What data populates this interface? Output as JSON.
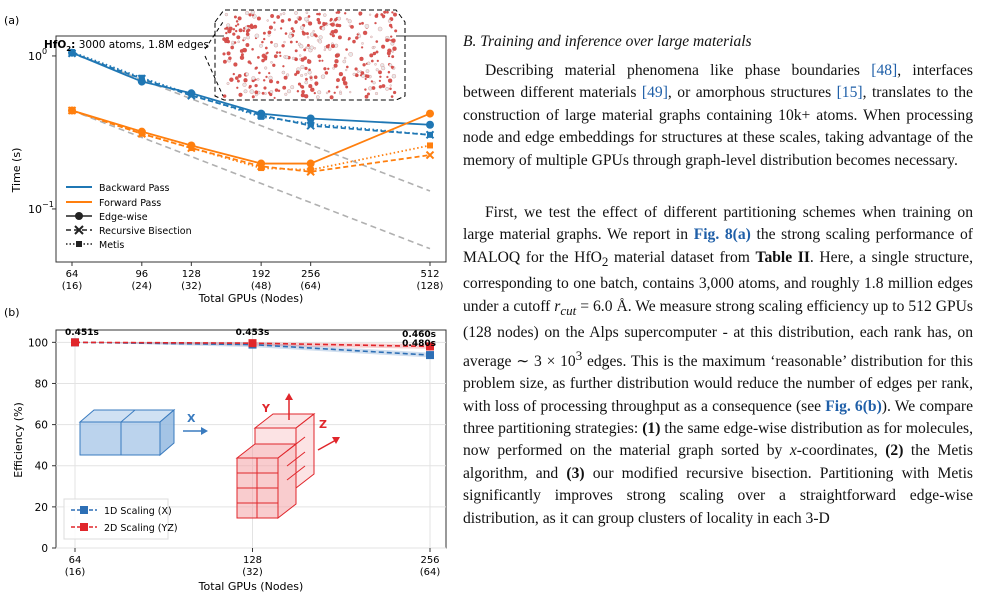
{
  "figure": {
    "panel_a_label": "(a)",
    "panel_b_label": "(b)",
    "inset_title_bold": "HfO",
    "inset_title_sub": "2",
    "inset_title_colon": ":",
    "inset_title_rest": " 3000 atoms, 1.8M edges"
  },
  "chart_data": [
    {
      "type": "line",
      "panel": "(a)",
      "xlabel": "Total GPUs (Nodes)",
      "ylabel": "Time (s)",
      "yscale": "log",
      "xscale": "log2",
      "x_ticks": [
        {
          "gpus": 64,
          "label": "64",
          "nodes": "(16)"
        },
        {
          "gpus": 96,
          "label": "96",
          "nodes": "(24)"
        },
        {
          "gpus": 128,
          "label": "128",
          "nodes": "(32)"
        },
        {
          "gpus": 192,
          "label": "192",
          "nodes": "(48)"
        },
        {
          "gpus": 256,
          "label": "256",
          "nodes": "(64)"
        },
        {
          "gpus": 512,
          "label": "512",
          "nodes": "(128)"
        }
      ],
      "y_ticks": [
        {
          "value": 1,
          "label": "10",
          "exp": "0"
        },
        {
          "value": 0.1,
          "label": "10",
          "exp": "−1"
        }
      ],
      "ylim": [
        0.045,
        1.35
      ],
      "legend": {
        "placement": "lower-left",
        "entries": [
          "Backward Pass",
          "Forward Pass",
          "Edge-wise",
          "Recursive Bisection",
          "Metis"
        ]
      },
      "colors": {
        "backward": "#1f77b4",
        "forward": "#ff7f0e",
        "ideal": "#b0b0b0"
      },
      "series": [
        {
          "pass": "Backward Pass",
          "method": "Edge-wise",
          "marker": "circle",
          "dash": "solid",
          "x": [
            64,
            96,
            128,
            192,
            256,
            512
          ],
          "y": [
            1.05,
            0.68,
            0.57,
            0.42,
            0.39,
            0.355
          ]
        },
        {
          "pass": "Backward Pass",
          "method": "Recursive Bisection",
          "marker": "x",
          "dash": "dashed",
          "x": [
            64,
            96,
            128,
            192,
            256,
            512
          ],
          "y": [
            1.04,
            0.71,
            0.55,
            0.41,
            0.35,
            0.305
          ]
        },
        {
          "pass": "Backward Pass",
          "method": "Metis",
          "marker": "square",
          "dash": "dotted",
          "x": [
            64,
            96,
            128,
            192,
            256,
            512
          ],
          "y": [
            1.06,
            0.72,
            0.56,
            0.4,
            0.36,
            0.305
          ]
        },
        {
          "pass": "Forward Pass",
          "method": "Edge-wise",
          "marker": "circle",
          "dash": "solid",
          "x": [
            64,
            96,
            128,
            192,
            256,
            512
          ],
          "y": [
            0.44,
            0.32,
            0.26,
            0.198,
            0.198,
            0.42
          ]
        },
        {
          "pass": "Forward Pass",
          "method": "Recursive Bisection",
          "marker": "x",
          "dash": "dashed",
          "x": [
            64,
            96,
            128,
            192,
            256,
            512
          ],
          "y": [
            0.44,
            0.31,
            0.25,
            0.19,
            0.175,
            0.225
          ]
        },
        {
          "pass": "Forward Pass",
          "method": "Metis",
          "marker": "square",
          "dash": "dotted",
          "x": [
            64,
            96,
            128,
            192,
            256,
            512
          ],
          "y": [
            0.44,
            0.31,
            0.25,
            0.185,
            0.18,
            0.26
          ]
        }
      ],
      "ideal": [
        {
          "x": [
            64,
            512
          ],
          "y": [
            1.05,
            0.131
          ]
        },
        {
          "x": [
            64,
            512
          ],
          "y": [
            0.44,
            0.055
          ]
        }
      ]
    },
    {
      "type": "line",
      "panel": "(b)",
      "xlabel": "Total GPUs (Nodes)",
      "ylabel": "Efficiency (%)",
      "ylim": [
        0,
        106
      ],
      "y_ticks": [
        0,
        20,
        40,
        60,
        80,
        100
      ],
      "x_ticks": [
        {
          "gpus": 64,
          "label": "64",
          "nodes": "(16)"
        },
        {
          "gpus": 128,
          "label": "128",
          "nodes": "(32)"
        },
        {
          "gpus": 256,
          "label": "256",
          "nodes": "(64)"
        }
      ],
      "legend": {
        "placement": "lower-left",
        "entries": [
          "1D Scaling (X)",
          "2D Scaling (YZ)"
        ]
      },
      "series": [
        {
          "name": "1D Scaling (X)",
          "color": "#2d6fb5",
          "marker": "square",
          "x": [
            64,
            128,
            256
          ],
          "y": [
            100,
            98.9,
            93.8
          ]
        },
        {
          "name": "2D Scaling (YZ)",
          "color": "#e0262b",
          "marker": "square",
          "x": [
            64,
            128,
            256
          ],
          "y": [
            100,
            99.6,
            98.0
          ]
        }
      ],
      "annotations": [
        "0.451s",
        "0.453s",
        "0.460s",
        "0.480s"
      ],
      "diagram_labels": {
        "x": "X",
        "y": "Y",
        "z": "Z"
      }
    }
  ],
  "text": {
    "section_heading": "B. Training and inference over large materials",
    "p1_a": "Describing material phenomena like phase boundaries ",
    "cite48": "[48]",
    "p1_b": ", interfaces between different materials ",
    "cite49": "[49]",
    "p1_c": ", or amorphous structures ",
    "cite15": "[15]",
    "p1_d": ", translates to the construction of large material graphs containing 10k+ atoms. When processing node and edge embeddings for structures at these scales, taking advantage of the memory of multiple GPUs through graph-level distribution becomes necessary.",
    "p2_a": "First, we test the effect of different partitioning schemes when training on large material graphs. We report in ",
    "fig8a": "Fig. 8(a)",
    "p2_b": " the strong scaling performance of MALOQ for the HfO",
    "p2_sub": "2",
    "p2_c": " material dataset from ",
    "table2": "Table II",
    "p2_d": ". Here, a single structure, corresponding to one batch, contains 3,000 atoms, and roughly 1.8 million edges under a cutoff ",
    "rcut": "r",
    "rcut_sub": "cut",
    "p2_e": " = 6.0 Å. We measure strong scaling efficiency up to 512 GPUs (128 nodes) on the Alps supercomputer - at this distribution, each rank has, on average ∼ 3 × 10",
    "p2_exp": "3",
    "p2_f": " edges. This is the maximum ‘reasonable’ distribution for this problem size, as further distribution would reduce the number of edges per rank, with loss of processing throughput as a consequence (see ",
    "fig6b": "Fig. 6(b)",
    "p2_g": "). We compare three partitioning strategies: ",
    "p2_n1": "(1)",
    "p2_h": " the same edge-wise distribution as for molecules, now performed on the material graph sorted by ",
    "p2_xvar": "x",
    "p2_i": "-coordinates, ",
    "p2_n2": "(2)",
    "p2_j": " the Metis algorithm, and ",
    "p2_n3": "(3)",
    "p2_k": " our modified recursive bisection. Partitioning with Metis significantly improves strong scaling over a straightforward edge-wise distribution, as it can group clusters of locality in each 3-D"
  }
}
